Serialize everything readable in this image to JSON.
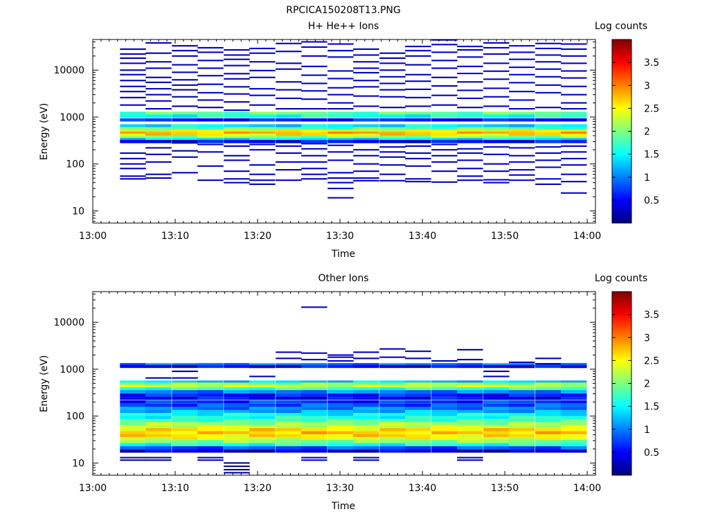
{
  "figure": {
    "filename": "RPCICA150208T13.PNG"
  },
  "colorscale": [
    "#00007f",
    "#0000ff",
    "#007fff",
    "#00ffff",
    "#7fff7f",
    "#ffff00",
    "#ff7f00",
    "#ff0000",
    "#7f0000"
  ],
  "chart_data": [
    {
      "type": "heatmap",
      "title": "H+ He++ Ions",
      "xlabel": "Time",
      "ylabel": "Energy (eV)",
      "colorbar_label": "Log counts",
      "x_ticks": [
        "13:00",
        "13:10",
        "13:20",
        "13:30",
        "13:40",
        "13:50",
        "14:00"
      ],
      "x_range": [
        "13:00",
        "14:01"
      ],
      "y_scale": "log",
      "y_range": [
        5.5,
        45000
      ],
      "y_ticks": [
        10,
        100,
        1000,
        10000
      ],
      "y_tick_labels": [
        "10",
        "100",
        "1000",
        "10000"
      ],
      "colorbar_range": [
        0,
        4
      ],
      "colorbar_ticks": [
        "0.5",
        "1",
        "1.5",
        "2",
        "2.5",
        "3",
        "3.5"
      ],
      "time_bins_start_min": [
        3.3,
        6.4,
        9.6,
        12.7,
        15.9,
        19.0,
        22.2,
        25.3,
        28.5,
        31.6,
        34.8,
        37.9,
        41.1,
        44.2,
        47.4,
        50.5,
        53.7,
        56.8
      ],
      "time_bin_width_min": 3.15,
      "energy_band_log_halfwidth": 0.035,
      "constant_energy_bands": [
        {
          "e": 1200,
          "v": 1.9
        },
        {
          "e": 1050,
          "v": 1.6
        },
        {
          "e": 870,
          "v": 0.6
        },
        {
          "e": 650,
          "v": 1.4
        },
        {
          "e": 560,
          "v": 1.9
        },
        {
          "e": 500,
          "v": 2.4
        },
        {
          "e": 450,
          "v": 2.8
        },
        {
          "e": 410,
          "v": 2.6
        },
        {
          "e": 370,
          "v": 2.1
        },
        {
          "e": 330,
          "v": 1.4
        },
        {
          "e": 300,
          "v": 0.5
        }
      ],
      "sparse_counts": [
        {
          "e": [
            28000,
            22000,
            18000,
            14000,
            10000,
            8000,
            6000,
            4500,
            3500,
            2600,
            1800,
            170,
            130,
            100,
            80,
            55,
            48
          ],
          "v": 0.25
        },
        {
          "e": [
            38000,
            23000,
            15000,
            11000,
            7000,
            5500,
            4000,
            3000,
            2200,
            1500,
            220,
            160,
            110,
            60,
            50
          ],
          "v": 0.25
        },
        {
          "e": [
            33000,
            26000,
            20000,
            13000,
            9000,
            6200,
            4800,
            3800,
            2700,
            1700,
            280,
            190,
            140,
            65
          ],
          "v": 0.2
        },
        {
          "e": [
            30000,
            24000,
            16000,
            11000,
            7600,
            5000,
            3300,
            2300,
            1600,
            260,
            180,
            90,
            45
          ],
          "v": 0.25
        },
        {
          "e": [
            27000,
            21000,
            17000,
            12500,
            8400,
            6500,
            4400,
            3100,
            2100,
            1400,
            240,
            150,
            120,
            70,
            48,
            40
          ],
          "v": 0.25
        },
        {
          "e": [
            29000,
            23000,
            15000,
            9800,
            7000,
            4000,
            2900,
            1800,
            260,
            200,
            95,
            60,
            45,
            37
          ],
          "v": 0.3
        },
        {
          "e": [
            37000,
            25000,
            14000,
            10500,
            5600,
            3800,
            2500,
            1500,
            240,
            170,
            110,
            75,
            45
          ],
          "v": 0.25
        },
        {
          "e": [
            40000,
            31000,
            20000,
            12000,
            7800,
            5200,
            3600,
            2400,
            1500,
            270,
            210,
            150,
            110,
            80,
            60,
            48
          ],
          "v": 0.3
        },
        {
          "e": [
            36000,
            26000,
            19000,
            9600,
            6600,
            4200,
            3000,
            2000,
            1500,
            250,
            180,
            120,
            65,
            50,
            40,
            30,
            19
          ],
          "v": 0.3
        },
        {
          "e": [
            28000,
            21000,
            15000,
            11000,
            8800,
            6000,
            4400,
            2800,
            1700,
            200,
            150,
            100,
            70,
            50,
            44
          ],
          "v": 0.3
        },
        {
          "e": [
            23000,
            18000,
            14000,
            10000,
            7200,
            5200,
            3800,
            2700,
            1600,
            230,
            180,
            140,
            95,
            60,
            44
          ],
          "v": 0.25
        },
        {
          "e": [
            32000,
            26000,
            20000,
            13000,
            8000,
            5800,
            3900,
            2600,
            1700,
            240,
            170,
            130,
            90,
            48,
            42
          ],
          "v": 0.25
        },
        {
          "e": [
            44000,
            35000,
            24000,
            16000,
            11000,
            7000,
            4600,
            2900,
            1800,
            260,
            200,
            150,
            110,
            70,
            41
          ],
          "v": 0.25
        },
        {
          "e": [
            32000,
            27000,
            19000,
            12000,
            8500,
            5600,
            3700,
            2500,
            1600,
            210,
            170,
            120,
            80,
            55,
            45
          ],
          "v": 0.3
        },
        {
          "e": [
            38000,
            30000,
            22000,
            14000,
            9500,
            6400,
            4100,
            2700,
            1700,
            230,
            160,
            100,
            70,
            46,
            40
          ],
          "v": 0.3
        },
        {
          "e": [
            33000,
            24000,
            17000,
            11500,
            8000,
            5400,
            3500,
            2300,
            1500,
            220,
            150,
            110,
            75,
            58,
            45
          ],
          "v": 0.35
        },
        {
          "e": [
            37000,
            29000,
            21000,
            15000,
            10500,
            7200,
            4800,
            3300,
            1600,
            230,
            170,
            120,
            85,
            48,
            37
          ],
          "v": 0.3
        },
        {
          "e": [
            36000,
            28000,
            20000,
            14000,
            9600,
            6800,
            4500,
            3000,
            2000,
            1500,
            240,
            180,
            130,
            95,
            60,
            42,
            24
          ],
          "v": 0.3
        }
      ]
    },
    {
      "type": "heatmap",
      "title": "Other Ions",
      "xlabel": "Time",
      "ylabel": "Energy (eV)",
      "colorbar_label": "Log counts",
      "x_ticks": [
        "13:00",
        "13:10",
        "13:20",
        "13:30",
        "13:40",
        "13:50",
        "14:00"
      ],
      "x_range": [
        "13:00",
        "14:01"
      ],
      "y_scale": "log",
      "y_range": [
        5.5,
        45000
      ],
      "y_ticks": [
        10,
        100,
        1000,
        10000
      ],
      "y_tick_labels": [
        "10",
        "100",
        "1000",
        "10000"
      ],
      "colorbar_range": [
        0,
        4
      ],
      "colorbar_ticks": [
        "0.5",
        "1",
        "1.5",
        "2",
        "2.5",
        "3",
        "3.5"
      ],
      "time_bins_start_min": [
        3.3,
        6.4,
        9.6,
        12.7,
        15.9,
        19.0,
        22.2,
        25.3,
        28.5,
        31.6,
        34.8,
        37.9,
        41.1,
        44.2,
        47.4,
        50.5,
        53.7,
        56.8
      ],
      "time_bin_width_min": 3.15,
      "energy_band_log_halfwidth": 0.035,
      "constant_energy_bands": [
        {
          "e": 1250,
          "v": 1.1
        },
        {
          "e": 1150,
          "v": 0.5
        },
        {
          "e": 530,
          "v": 1.3
        },
        {
          "e": 480,
          "v": 2.0
        },
        {
          "e": 430,
          "v": 2.3
        },
        {
          "e": 380,
          "v": 1.7
        },
        {
          "e": 330,
          "v": 1.0
        },
        {
          "e": 280,
          "v": 0.6
        },
        {
          "e": 240,
          "v": 0.5
        },
        {
          "e": 200,
          "v": 0.7
        },
        {
          "e": 170,
          "v": 0.8
        },
        {
          "e": 145,
          "v": 1.0
        },
        {
          "e": 125,
          "v": 1.2
        },
        {
          "e": 108,
          "v": 1.5
        },
        {
          "e": 93,
          "v": 1.6
        },
        {
          "e": 80,
          "v": 1.8
        },
        {
          "e": 69,
          "v": 2.1
        },
        {
          "e": 59,
          "v": 2.3
        },
        {
          "e": 51,
          "v": 2.6
        },
        {
          "e": 44,
          "v": 2.7
        },
        {
          "e": 38,
          "v": 2.6
        },
        {
          "e": 33,
          "v": 2.4
        },
        {
          "e": 28.5,
          "v": 2.0
        },
        {
          "e": 24.5,
          "v": 1.6
        },
        {
          "e": 21,
          "v": 0.8
        },
        {
          "e": 18,
          "v": 0.35
        }
      ],
      "sparse_counts": [
        {
          "e": [
            13,
            11.5
          ],
          "v": 0.15
        },
        {
          "e": [
            13,
            11.5,
            650
          ],
          "v": 0.15
        },
        {
          "e": [
            900,
            650
          ],
          "v": 0.2
        },
        {
          "e": [
            13,
            11.5
          ],
          "v": 0.2
        },
        {
          "e": [
            10,
            8.5,
            7.2,
            6.2
          ],
          "v": 0.1
        },
        {
          "e": [
            1100,
            700
          ],
          "v": 0.2
        },
        {
          "e": [
            2300,
            1700
          ],
          "v": 0.25
        },
        {
          "e": [
            21000,
            2200,
            1600,
            13,
            11.5
          ],
          "v": 0.3
        },
        {
          "e": [
            2000,
            1800,
            1500
          ],
          "v": 0.3
        },
        {
          "e": [
            13,
            11.5,
            2300,
            1700
          ],
          "v": 0.25
        },
        {
          "e": [
            2700,
            1800
          ],
          "v": 0.25
        },
        {
          "e": [
            2400,
            1700
          ],
          "v": 0.25
        },
        {
          "e": [
            1500
          ],
          "v": 0.2
        },
        {
          "e": [
            2600,
            1600,
            13,
            11.5
          ],
          "v": 0.2
        },
        {
          "e": [
            900,
            700
          ],
          "v": 0.25
        },
        {
          "e": [
            1400,
            1100
          ],
          "v": 0.25
        },
        {
          "e": [
            1700,
            1300
          ],
          "v": 0.25
        },
        {
          "e": [
            1100
          ],
          "v": 0.2
        }
      ]
    }
  ]
}
